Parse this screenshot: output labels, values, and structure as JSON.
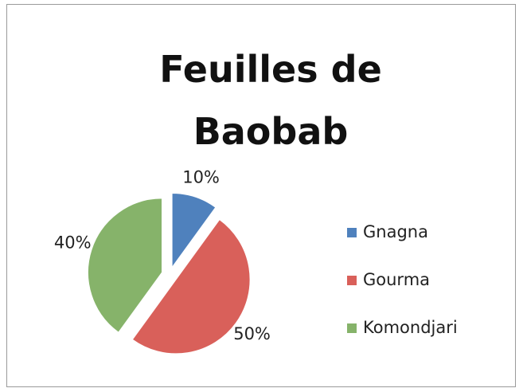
{
  "chart_data": {
    "type": "pie",
    "title": "Feuilles de Baobab",
    "categories": [
      "Gnagna",
      "Gourma",
      "Komondjari"
    ],
    "values": [
      10,
      50,
      40
    ],
    "value_labels": [
      "10%",
      "50%",
      "40%"
    ],
    "colors": [
      "#4f81bd",
      "#d9605a",
      "#86b36a"
    ],
    "legend": "right",
    "exploded": true
  }
}
